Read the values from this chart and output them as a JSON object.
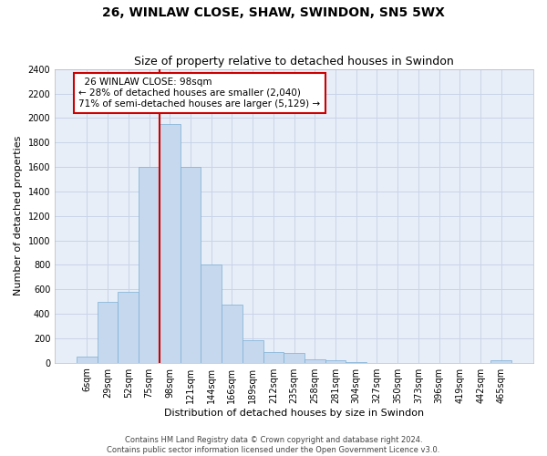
{
  "title_line1": "26, WINLAW CLOSE, SHAW, SWINDON, SN5 5WX",
  "title_line2": "Size of property relative to detached houses in Swindon",
  "xlabel": "Distribution of detached houses by size in Swindon",
  "ylabel": "Number of detached properties",
  "footnote1": "Contains HM Land Registry data © Crown copyright and database right 2024.",
  "footnote2": "Contains public sector information licensed under the Open Government Licence v3.0.",
  "annotation_line1": "  26 WINLAW CLOSE: 98sqm",
  "annotation_line2": "← 28% of detached houses are smaller (2,040)",
  "annotation_line3": "71% of semi-detached houses are larger (5,129) →",
  "bar_labels": [
    "6sqm",
    "29sqm",
    "52sqm",
    "75sqm",
    "98sqm",
    "121sqm",
    "144sqm",
    "166sqm",
    "189sqm",
    "212sqm",
    "235sqm",
    "258sqm",
    "281sqm",
    "304sqm",
    "327sqm",
    "350sqm",
    "373sqm",
    "396sqm",
    "419sqm",
    "442sqm",
    "465sqm"
  ],
  "bar_heights": [
    50,
    500,
    580,
    1600,
    1950,
    1600,
    800,
    475,
    185,
    90,
    80,
    30,
    20,
    5,
    0,
    0,
    0,
    0,
    0,
    0,
    20
  ],
  "bar_color": "#c5d8ed",
  "bar_edge_color": "#7bafd4",
  "highlight_line_color": "#cc0000",
  "highlight_line_index": 4,
  "ylim_max": 2400,
  "yticks": [
    0,
    200,
    400,
    600,
    800,
    1000,
    1200,
    1400,
    1600,
    1800,
    2000,
    2200,
    2400
  ],
  "grid_color": "#c8d4e8",
  "bg_color": "#e8eef8",
  "annotation_box_color": "#cc0000",
  "title_fontsize": 10,
  "subtitle_fontsize": 9,
  "ylabel_fontsize": 8,
  "xlabel_fontsize": 8,
  "tick_fontsize": 7,
  "annotation_fontsize": 7.5,
  "footnote_fontsize": 6
}
